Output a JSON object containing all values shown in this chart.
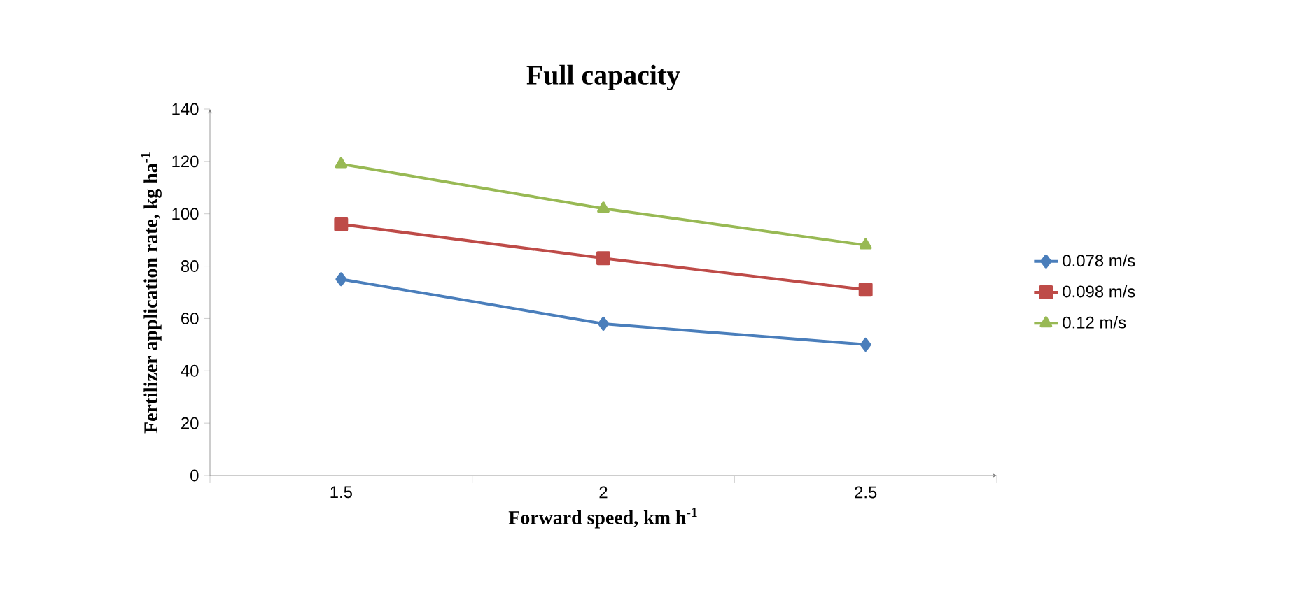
{
  "chart_data": {
    "type": "line",
    "title": "Full capacity",
    "xlabel": "Forward speed, km h$^{-1}$",
    "ylabel": "Fertilizer application rate, kg ha$^{-1}$",
    "categories": [
      "1.5",
      "2",
      "2.5"
    ],
    "series": [
      {
        "name": "0.078 m/s",
        "color": "#4a7ebb",
        "marker": "diamond",
        "values": [
          75,
          58,
          50
        ]
      },
      {
        "name": "0.098 m/s",
        "color": "#be4b48",
        "marker": "square",
        "values": [
          96,
          83,
          71
        ]
      },
      {
        "name": "0.12 m/s",
        "color": "#98b954",
        "marker": "triangle",
        "values": [
          119,
          102,
          88
        ]
      }
    ],
    "ylim": [
      0,
      140
    ],
    "yticks": [
      0,
      20,
      40,
      60,
      80,
      100,
      120,
      140
    ],
    "grid": false,
    "legend": "right"
  }
}
